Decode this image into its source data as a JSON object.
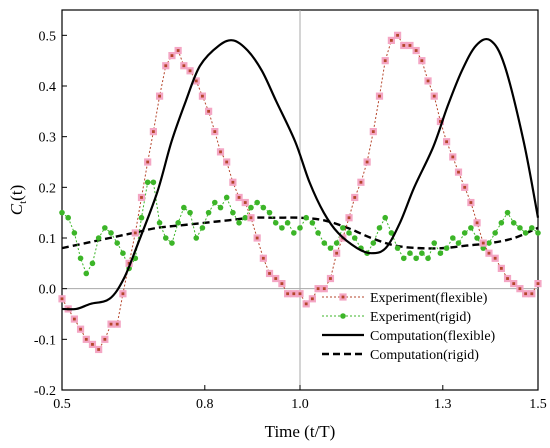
{
  "chart_data": {
    "type": "line",
    "title": "",
    "xlabel": "Time (t/T)",
    "ylabel_main": "C",
    "ylabel_sub": "t",
    "ylabel_suffix": "(t)",
    "xlim": [
      0.5,
      1.5
    ],
    "ylim": [
      -0.2,
      0.55
    ],
    "x_ticks": [
      0.5,
      0.8,
      1.0,
      1.3,
      1.5
    ],
    "x_tick_labels": [
      "0.5",
      "0.8",
      "1.0",
      "1.3",
      "1.5"
    ],
    "y_ticks": [
      -0.2,
      -0.1,
      0.0,
      0.1,
      0.2,
      0.3,
      0.4,
      0.5
    ],
    "y_tick_labels": [
      "-0.2",
      "-0.1",
      "0.0",
      "0.1",
      "0.2",
      "0.3",
      "0.4",
      "0.5"
    ],
    "crosshair": {
      "x": 1.0,
      "y": 0.0
    },
    "legend_position": "bottom-right",
    "series": [
      {
        "name": "Experiment(flexible)",
        "style": "dotted-square-marker",
        "color": "#b5452b",
        "x": [
          0.5,
          0.513,
          0.526,
          0.539,
          0.551,
          0.564,
          0.577,
          0.59,
          0.603,
          0.616,
          0.628,
          0.641,
          0.654,
          0.667,
          0.68,
          0.692,
          0.705,
          0.718,
          0.731,
          0.744,
          0.756,
          0.769,
          0.782,
          0.795,
          0.808,
          0.821,
          0.833,
          0.846,
          0.859,
          0.872,
          0.885,
          0.897,
          0.91,
          0.923,
          0.936,
          0.949,
          0.962,
          0.974,
          0.987,
          1.0,
          1.013,
          1.026,
          1.038,
          1.051,
          1.064,
          1.077,
          1.09,
          1.103,
          1.115,
          1.128,
          1.141,
          1.154,
          1.167,
          1.179,
          1.192,
          1.205,
          1.218,
          1.231,
          1.244,
          1.256,
          1.269,
          1.282,
          1.295,
          1.308,
          1.321,
          1.333,
          1.346,
          1.359,
          1.372,
          1.385,
          1.397,
          1.41,
          1.423,
          1.436,
          1.449,
          1.462,
          1.474,
          1.487,
          1.5
        ],
        "y": [
          -0.02,
          -0.04,
          -0.06,
          -0.08,
          -0.1,
          -0.11,
          -0.12,
          -0.1,
          -0.07,
          -0.07,
          -0.01,
          0.05,
          0.11,
          0.18,
          0.25,
          0.31,
          0.38,
          0.44,
          0.46,
          0.47,
          0.44,
          0.43,
          0.41,
          0.38,
          0.35,
          0.31,
          0.27,
          0.25,
          0.21,
          0.18,
          0.17,
          0.14,
          0.1,
          0.06,
          0.03,
          0.02,
          0.01,
          -0.01,
          -0.01,
          -0.01,
          -0.03,
          -0.02,
          0.0,
          0.0,
          0.02,
          0.07,
          0.1,
          0.14,
          0.18,
          0.21,
          0.25,
          0.31,
          0.38,
          0.45,
          0.49,
          0.5,
          0.48,
          0.48,
          0.47,
          0.45,
          0.41,
          0.38,
          0.33,
          0.29,
          0.26,
          0.23,
          0.2,
          0.17,
          0.13,
          0.09,
          0.07,
          0.06,
          0.04,
          0.02,
          0.01,
          0.0,
          -0.01,
          -0.01,
          0.01
        ]
      },
      {
        "name": "Experiment(rigid)",
        "style": "dotted-circle-marker",
        "color": "#3cb528",
        "x": [
          0.5,
          0.513,
          0.526,
          0.539,
          0.551,
          0.564,
          0.577,
          0.59,
          0.603,
          0.616,
          0.628,
          0.641,
          0.654,
          0.667,
          0.68,
          0.692,
          0.705,
          0.718,
          0.731,
          0.744,
          0.756,
          0.769,
          0.782,
          0.795,
          0.808,
          0.821,
          0.833,
          0.846,
          0.859,
          0.872,
          0.885,
          0.897,
          0.91,
          0.923,
          0.936,
          0.949,
          0.962,
          0.974,
          0.987,
          1.0,
          1.013,
          1.026,
          1.038,
          1.051,
          1.064,
          1.077,
          1.09,
          1.103,
          1.115,
          1.128,
          1.141,
          1.154,
          1.167,
          1.179,
          1.192,
          1.205,
          1.218,
          1.231,
          1.244,
          1.256,
          1.269,
          1.282,
          1.295,
          1.308,
          1.321,
          1.333,
          1.346,
          1.359,
          1.372,
          1.385,
          1.397,
          1.41,
          1.423,
          1.436,
          1.449,
          1.462,
          1.474,
          1.487,
          1.5
        ],
        "y": [
          0.15,
          0.14,
          0.11,
          0.06,
          0.03,
          0.05,
          0.1,
          0.12,
          0.11,
          0.09,
          0.07,
          0.04,
          0.06,
          0.14,
          0.21,
          0.21,
          0.13,
          0.1,
          0.09,
          0.13,
          0.16,
          0.15,
          0.1,
          0.12,
          0.15,
          0.17,
          0.16,
          0.18,
          0.15,
          0.13,
          0.14,
          0.16,
          0.17,
          0.16,
          0.15,
          0.13,
          0.12,
          0.13,
          0.11,
          0.12,
          0.14,
          0.13,
          0.11,
          0.09,
          0.08,
          0.09,
          0.12,
          0.11,
          0.1,
          0.08,
          0.07,
          0.09,
          0.12,
          0.14,
          0.11,
          0.08,
          0.06,
          0.07,
          0.06,
          0.07,
          0.06,
          0.09,
          0.07,
          0.08,
          0.1,
          0.09,
          0.11,
          0.12,
          0.1,
          0.08,
          0.09,
          0.11,
          0.13,
          0.15,
          0.13,
          0.12,
          0.11,
          0.12,
          0.11
        ]
      },
      {
        "name": "Computation(flexible)",
        "style": "solid",
        "color": "#000000",
        "x": [
          0.5,
          0.53,
          0.56,
          0.6,
          0.63,
          0.66,
          0.7,
          0.73,
          0.76,
          0.79,
          0.83,
          0.86,
          0.89,
          0.92,
          0.95,
          0.99,
          1.02,
          1.05,
          1.08,
          1.12,
          1.15,
          1.18,
          1.21,
          1.24,
          1.28,
          1.31,
          1.34,
          1.37,
          1.4,
          1.43,
          1.47,
          1.5
        ],
        "y": [
          -0.04,
          -0.04,
          -0.03,
          -0.02,
          0.02,
          0.09,
          0.19,
          0.29,
          0.37,
          0.44,
          0.48,
          0.49,
          0.47,
          0.43,
          0.37,
          0.29,
          0.21,
          0.15,
          0.11,
          0.08,
          0.07,
          0.08,
          0.13,
          0.2,
          0.28,
          0.36,
          0.43,
          0.48,
          0.49,
          0.44,
          0.29,
          0.14
        ]
      },
      {
        "name": "Computation(rigid)",
        "style": "dashed",
        "color": "#000000",
        "x": [
          0.5,
          0.55,
          0.6,
          0.65,
          0.7,
          0.75,
          0.8,
          0.85,
          0.9,
          0.95,
          1.0,
          1.05,
          1.1,
          1.15,
          1.2,
          1.25,
          1.3,
          1.35,
          1.4,
          1.45,
          1.5
        ],
        "y": [
          0.08,
          0.09,
          0.1,
          0.11,
          0.12,
          0.125,
          0.13,
          0.135,
          0.14,
          0.14,
          0.14,
          0.135,
          0.12,
          0.1,
          0.085,
          0.08,
          0.08,
          0.085,
          0.09,
          0.1,
          0.12
        ]
      }
    ]
  }
}
